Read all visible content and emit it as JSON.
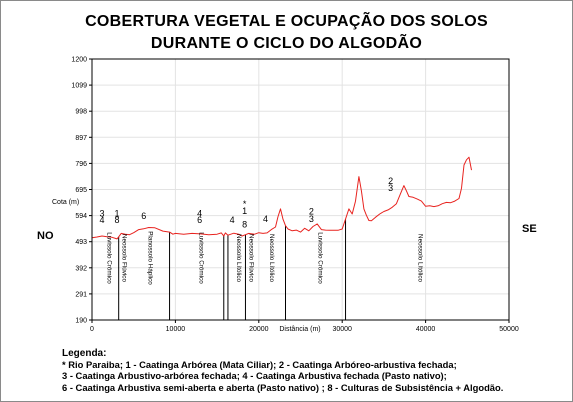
{
  "title_line1": "COBERTURA VEGETAL E OCUPAÇÃO DOS SOLOS",
  "title_line2": "DURANTE O CICLO DO ALGODÃO",
  "chart_data": {
    "type": "line",
    "xlabel": "Distância (m)",
    "ylabel": "Cota (m)",
    "xlim": [
      0,
      50000
    ],
    "ylim": [
      190,
      1200
    ],
    "xticks": [
      0,
      10000,
      20000,
      30000,
      40000,
      50000
    ],
    "xtick_labels": [
      "0",
      "10000",
      "20000",
      "30000",
      "40000",
      "50000"
    ],
    "yticks": [
      190,
      291,
      392,
      493,
      594,
      695,
      796,
      897,
      998,
      1099,
      1200
    ],
    "ytick_labels": [
      "190",
      "291",
      "392",
      "493",
      "594",
      "695",
      "796",
      "897",
      "998",
      "1099",
      "1200"
    ],
    "direction_left": "NO",
    "direction_right": "SE",
    "line_color": "#e8231f",
    "series": [
      {
        "x": [
          0,
          600,
          1200,
          1800,
          2400,
          3000,
          3200,
          3500,
          4000,
          4500,
          5000,
          5600,
          6200,
          6800,
          7500,
          8500,
          9300,
          9700,
          10000,
          11000,
          12000,
          13000,
          14000,
          15000,
          15500,
          15800,
          16000,
          16300,
          17000,
          17600,
          18000,
          18400,
          18800,
          19500,
          20000,
          20500,
          21000,
          21500,
          22000,
          22300,
          22600,
          22900,
          23200,
          23500,
          24000,
          24500,
          25000,
          25500,
          26000,
          26500,
          27000,
          27500,
          28000,
          28500,
          29000,
          29500,
          30000,
          30400,
          30800,
          31200,
          31600,
          32000,
          32300,
          32600,
          32900,
          33200,
          33500,
          34000,
          34500,
          35000,
          35500,
          36000,
          36500,
          37000,
          37400,
          37700,
          38000,
          38500,
          39000,
          39500,
          40000,
          40500,
          41000,
          41500,
          42000,
          42500,
          43000,
          43500,
          44000,
          44300,
          44600,
          44900,
          45200,
          45500
        ],
        "y": [
          508,
          511,
          515,
          512,
          510,
          504,
          512,
          525,
          522,
          520,
          528,
          540,
          543,
          548,
          547,
          534,
          530,
          522,
          525,
          522,
          525,
          523,
          520,
          522,
          527,
          515,
          527,
          518,
          526,
          522,
          515,
          520,
          525,
          522,
          528,
          525,
          527,
          540,
          550,
          590,
          620,
          580,
          555,
          542,
          535,
          538,
          530,
          545,
          535,
          552,
          562,
          540,
          538,
          537,
          537,
          537,
          542,
          580,
          620,
          600,
          650,
          745,
          690,
          620,
          595,
          575,
          574,
          588,
          600,
          610,
          616,
          626,
          640,
          680,
          710,
          690,
          668,
          665,
          658,
          650,
          630,
          632,
          629,
          632,
          640,
          645,
          644,
          650,
          660,
          700,
          790,
          810,
          820,
          770
        ]
      }
    ],
    "dividers": [
      3200,
      9300,
      15800,
      16300,
      18400,
      23200,
      30400
    ],
    "zone_labels": [
      {
        "text": "Luvissolo Crômico",
        "x": 1500
      },
      {
        "text": "Neossolo Flúvico",
        "x": 3300
      },
      {
        "text": "Planossolo Háplico",
        "x": 6400
      },
      {
        "text": "Luvissolo Crômico",
        "x": 12500
      },
      {
        "text": "Neossolo Lítólico",
        "x": 17000
      },
      {
        "text": "Neossolo Flúvico",
        "x": 18500
      },
      {
        "text": "Neossolo Lítólico",
        "x": 21000
      },
      {
        "text": "Luvissolo Crômico",
        "x": 26800
      },
      {
        "text": "Neossolo Lítólico",
        "x": 38800
      }
    ],
    "annotations": [
      {
        "text": "3",
        "x": 1200,
        "y": 590
      },
      {
        "text": "4",
        "x": 1200,
        "y": 565
      },
      {
        "text": "1",
        "x": 3000,
        "y": 590
      },
      {
        "text": "8",
        "x": 3000,
        "y": 565
      },
      {
        "text": "6",
        "x": 6200,
        "y": 580
      },
      {
        "text": "4",
        "x": 12900,
        "y": 590
      },
      {
        "text": "6",
        "x": 12900,
        "y": 565
      },
      {
        "text": "4",
        "x": 16800,
        "y": 565
      },
      {
        "text": "*",
        "x": 18300,
        "y": 628
      },
      {
        "text": "1",
        "x": 18300,
        "y": 600
      },
      {
        "text": "8",
        "x": 18300,
        "y": 547
      },
      {
        "text": "4",
        "x": 20800,
        "y": 570
      },
      {
        "text": "2",
        "x": 26300,
        "y": 598
      },
      {
        "text": "3",
        "x": 26300,
        "y": 570
      },
      {
        "text": "2",
        "x": 35800,
        "y": 717
      },
      {
        "text": "3",
        "x": 35800,
        "y": 690
      }
    ]
  },
  "legend": {
    "heading": "Legenda:",
    "line1": "* Rio Paraiba; 1 - Caatinga Arbórea (Mata Ciliar); 2 - Caatinga Arbóreo-arbustiva fechada;",
    "line2": "3 - Caatinga Arbustivo-arbórea fechada; 4 - Caatinga Arbustiva fechada (Pasto nativo);",
    "line3": "6 - Caatinga Arbustiva semi-aberta e aberta (Pasto nativo) ; 8 - Culturas de Subsistência + Algodão."
  }
}
